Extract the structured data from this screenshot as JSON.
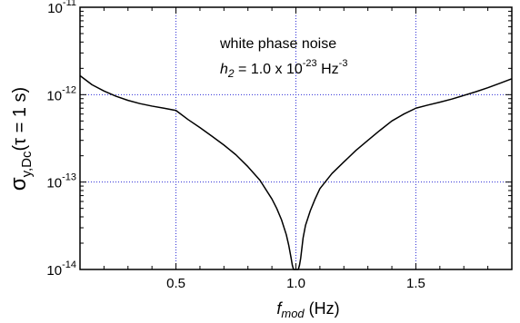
{
  "chart_data": {
    "type": "line",
    "title": "",
    "xlabel": {
      "main": "f",
      "sub": "mod",
      "unit": " (Hz)"
    },
    "ylabel": {
      "symbol": "σ",
      "sub": "y,Dc",
      "rest": "(τ = 1 s)"
    },
    "x_range": [
      0.1,
      1.9
    ],
    "y_range": [
      1e-14,
      1e-11
    ],
    "y_scale": "log",
    "grid": true,
    "x_ticks": [
      {
        "value": 0.5,
        "label": "0.5"
      },
      {
        "value": 1.0,
        "label": "1.0"
      },
      {
        "value": 1.5,
        "label": "1.5"
      }
    ],
    "y_ticks": [
      {
        "value": 1e-14,
        "base": "10",
        "exp": "-14"
      },
      {
        "value": 1e-13,
        "base": "10",
        "exp": "-13"
      },
      {
        "value": 1e-12,
        "base": "10",
        "exp": "-12"
      },
      {
        "value": 1e-11,
        "base": "10",
        "exp": "-11"
      }
    ],
    "annotations": {
      "line1": "white phase noise",
      "line2_symbol": "h",
      "line2_sub": "2",
      "line2_mid": " = 1.0 x 10",
      "line2_exp": "-23",
      "line2_unit": " Hz",
      "line2_unit_exp": "-3"
    },
    "colors": {
      "curve": "#000000",
      "grid": "#2b2bd6",
      "axes": "#000000"
    },
    "series": [
      {
        "x": [
          0.1,
          0.15,
          0.2,
          0.25,
          0.3,
          0.35,
          0.4,
          0.45,
          0.5,
          0.55,
          0.6,
          0.65,
          0.7,
          0.75,
          0.8,
          0.85,
          0.9,
          0.92,
          0.94,
          0.96,
          0.97,
          0.98,
          0.985,
          0.99,
          0.995,
          1.0,
          1.005,
          1.01,
          1.015,
          1.02,
          1.03,
          1.04,
          1.06,
          1.08,
          1.1,
          1.15,
          1.2,
          1.25,
          1.3,
          1.35,
          1.4,
          1.45,
          1.5,
          1.55,
          1.6,
          1.65,
          1.7,
          1.75,
          1.8,
          1.85,
          1.9
        ],
        "y": [
          1.65e-12,
          1.3e-12,
          1.1e-12,
          9.6e-13,
          8.6e-13,
          7.9e-13,
          7.4e-13,
          7e-13,
          6.6e-13,
          5.2e-13,
          4.2e-13,
          3.35e-13,
          2.65e-13,
          2.05e-13,
          1.5e-13,
          1.05e-13,
          6.4e-14,
          5e-14,
          3.7e-14,
          2.5e-14,
          1.9e-14,
          1.35e-14,
          1.12e-14,
          1e-14,
          1e-14,
          1e-14,
          1e-14,
          1e-14,
          1.12e-14,
          1.35e-14,
          2.3e-14,
          3.2e-14,
          4.7e-14,
          6.4e-14,
          8.4e-14,
          1.25e-13,
          1.7e-13,
          2.3e-13,
          3e-13,
          3.9e-13,
          5e-13,
          6e-13,
          7e-13,
          7.6e-13,
          8.2e-13,
          8.9e-13,
          9.8e-13,
          1.08e-12,
          1.2e-12,
          1.35e-12,
          1.52e-12
        ]
      }
    ]
  }
}
